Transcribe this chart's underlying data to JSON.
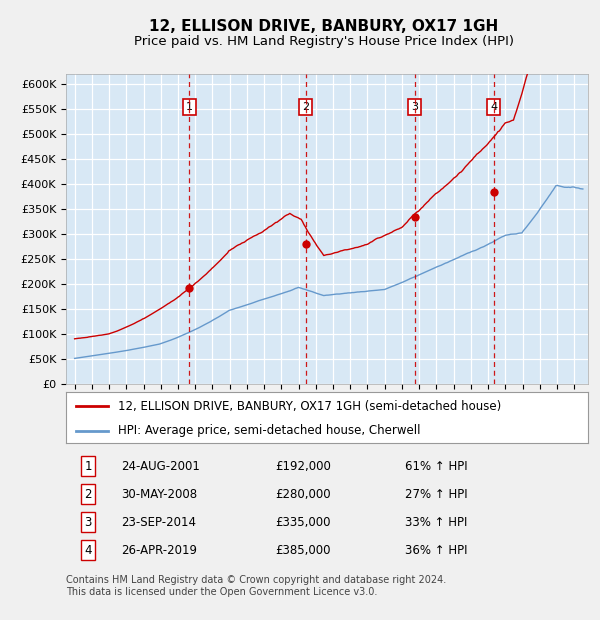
{
  "title": "12, ELLISON DRIVE, BANBURY, OX17 1GH",
  "subtitle": "Price paid vs. HM Land Registry's House Price Index (HPI)",
  "ylim": [
    0,
    620000
  ],
  "yticks": [
    0,
    50000,
    100000,
    150000,
    200000,
    250000,
    300000,
    350000,
    400000,
    450000,
    500000,
    550000,
    600000
  ],
  "ytick_labels": [
    "£0",
    "£50K",
    "£100K",
    "£150K",
    "£200K",
    "£250K",
    "£300K",
    "£350K",
    "£400K",
    "£450K",
    "£500K",
    "£550K",
    "£600K"
  ],
  "xlim_start": 1994.5,
  "xlim_end": 2024.8,
  "plot_bg_color": "#d8e8f5",
  "grid_color": "#ffffff",
  "red_line_color": "#cc0000",
  "blue_line_color": "#6699cc",
  "vline_color": "#cc0000",
  "sale_dates": [
    2001.65,
    2008.41,
    2014.73,
    2019.32
  ],
  "sale_prices": [
    192000,
    280000,
    335000,
    385000
  ],
  "sale_labels": [
    "1",
    "2",
    "3",
    "4"
  ],
  "legend_red_label": "12, ELLISON DRIVE, BANBURY, OX17 1GH (semi-detached house)",
  "legend_blue_label": "HPI: Average price, semi-detached house, Cherwell",
  "table_entries": [
    [
      "1",
      "24-AUG-2001",
      "£192,000",
      "61% ↑ HPI"
    ],
    [
      "2",
      "30-MAY-2008",
      "£280,000",
      "27% ↑ HPI"
    ],
    [
      "3",
      "23-SEP-2014",
      "£335,000",
      "33% ↑ HPI"
    ],
    [
      "4",
      "26-APR-2019",
      "£385,000",
      "36% ↑ HPI"
    ]
  ],
  "footnote": "Contains HM Land Registry data © Crown copyright and database right 2024.\nThis data is licensed under the Open Government Licence v3.0.",
  "title_fontsize": 11,
  "subtitle_fontsize": 9.5,
  "tick_fontsize": 8,
  "legend_fontsize": 8.5,
  "table_fontsize": 8.5,
  "footnote_fontsize": 7
}
